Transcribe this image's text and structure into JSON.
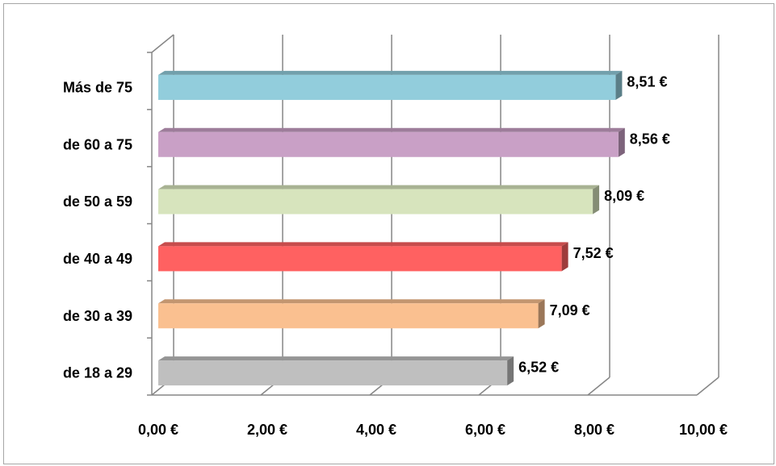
{
  "chart_data": {
    "type": "bar",
    "orientation": "horizontal",
    "style": "3d",
    "categories": [
      "Más de 75",
      "de 60 a 75",
      "de 50 a 59",
      "de 40 a 49",
      "de 30 a 39",
      "de 18 a 29"
    ],
    "values": [
      8.51,
      8.56,
      8.09,
      7.52,
      7.09,
      6.52
    ],
    "value_labels": [
      "8,51 €",
      "8,56 €",
      "8,09 €",
      "7,52 €",
      "7,09 €",
      "6,52 €"
    ],
    "colors": [
      "#92cddc",
      "#c9a0c6",
      "#d7e4bd",
      "#ff6161",
      "#fac090",
      "#bfbfbf"
    ],
    "x_ticks": [
      0,
      2,
      4,
      6,
      8,
      10
    ],
    "x_tick_labels": [
      "0,00 €",
      "2,00 €",
      "4,00 €",
      "6,00 €",
      "8,00 €",
      "10,00 €"
    ],
    "xlim": [
      0,
      10
    ],
    "grid": true,
    "legend": "none",
    "title": "",
    "xlabel": "",
    "ylabel": ""
  }
}
